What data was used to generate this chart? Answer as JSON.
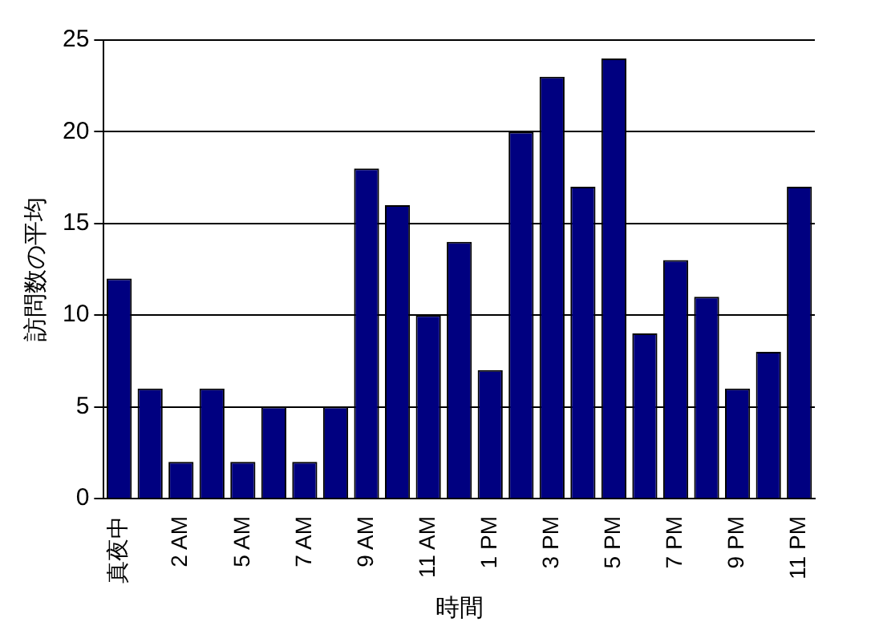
{
  "chart_data": {
    "type": "bar",
    "xlabel": "時間",
    "ylabel": "訪問数の平均",
    "categories": [
      "真夜中",
      null,
      "2 AM",
      null,
      "5 AM",
      null,
      "7 AM",
      null,
      "9 AM",
      null,
      "11 AM",
      null,
      "1 PM",
      null,
      "3 PM",
      null,
      "5 PM",
      null,
      "7 PM",
      null,
      "9 PM",
      null,
      "11 PM"
    ],
    "values": [
      12,
      6,
      2,
      6,
      2,
      5,
      2,
      5,
      18,
      16,
      10,
      14,
      7,
      20,
      23,
      17,
      24,
      9,
      13,
      11,
      6,
      8,
      17
    ],
    "color": "#000080",
    "ylim": [
      0,
      25
    ],
    "yticks": [
      0,
      5,
      10,
      15,
      20,
      25
    ],
    "grid": "y",
    "legend": false
  }
}
